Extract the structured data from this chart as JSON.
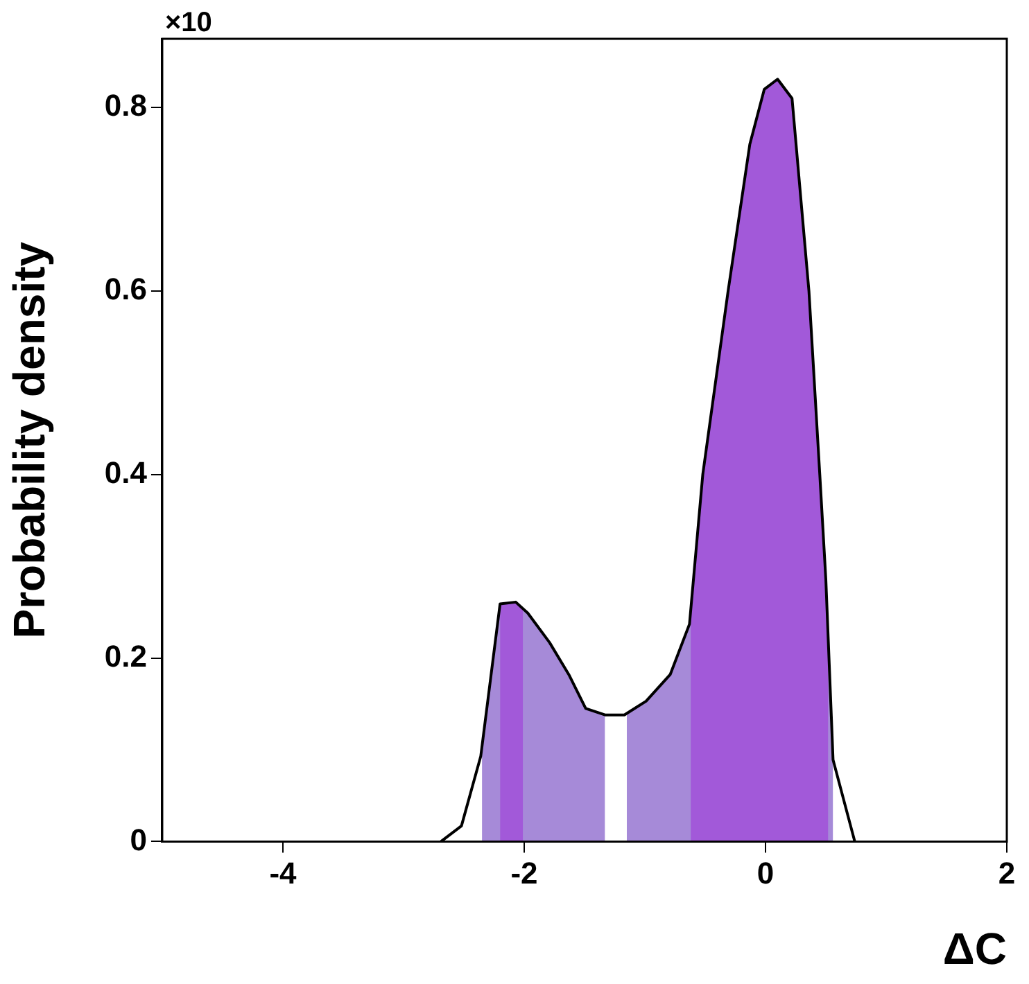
{
  "chart_data": {
    "type": "line",
    "xlabel": "ΔC",
    "ylabel": "Probability density",
    "annotations": [
      "×10"
    ],
    "xlim": [
      -5,
      2
    ],
    "ylim": [
      0,
      0.875
    ],
    "xticks": [
      -4,
      -2,
      0,
      2
    ],
    "yticks": [
      0,
      0.2,
      0.4,
      0.6,
      0.8
    ],
    "marker": "none",
    "series": [
      {
        "type": "area",
        "color": "#a68ad8",
        "x": [
          -2.35,
          -2.2,
          -2.07,
          -1.97,
          -1.79,
          -1.63,
          -1.49,
          -1.33,
          -1.24,
          -1.15,
          -0.99,
          -0.79,
          -0.62,
          -0.52,
          -0.31,
          -0.13,
          -0.01,
          0.1,
          0.22,
          0.36,
          0.45,
          0.5,
          0.56
        ],
        "values": [
          0.1,
          0.259,
          0.261,
          0.249,
          0.217,
          0.182,
          0.145,
          0.138,
          null,
          0.138,
          0.153,
          0.182,
          0.24,
          0.4,
          0.6,
          0.76,
          0.82,
          0.831,
          0.81,
          0.6,
          0.4,
          0.286,
          0.089
        ]
      },
      {
        "type": "area",
        "color": "#a259d9",
        "x": [
          -2.2,
          -2.07,
          -2.01,
          -1.9,
          -0.62,
          -0.52,
          -0.31,
          -0.13,
          -0.01,
          0.1,
          0.22,
          0.36,
          0.45,
          0.5,
          0.52
        ],
        "values": [
          0.259,
          0.261,
          0.255,
          null,
          0.24,
          0.4,
          0.6,
          0.76,
          0.82,
          0.831,
          0.81,
          0.6,
          0.4,
          0.286,
          0.22
        ]
      },
      {
        "type": "line",
        "color": "#000000",
        "x": [
          -2.69,
          -2.52,
          -2.36,
          -2.2,
          -2.07,
          -1.97,
          -1.79,
          -1.63,
          -1.49,
          -1.33,
          -1.17,
          -0.99,
          -0.79,
          -0.63,
          -0.52,
          -0.31,
          -0.13,
          -0.01,
          0.1,
          0.22,
          0.36,
          0.45,
          0.5,
          0.56,
          0.74
        ],
        "values": [
          0,
          0.017,
          0.093,
          0.259,
          0.261,
          0.249,
          0.217,
          0.182,
          0.145,
          0.138,
          0.138,
          0.153,
          0.182,
          0.237,
          0.4,
          0.6,
          0.76,
          0.82,
          0.831,
          0.81,
          0.6,
          0.4,
          0.286,
          0.089,
          0
        ]
      }
    ]
  }
}
